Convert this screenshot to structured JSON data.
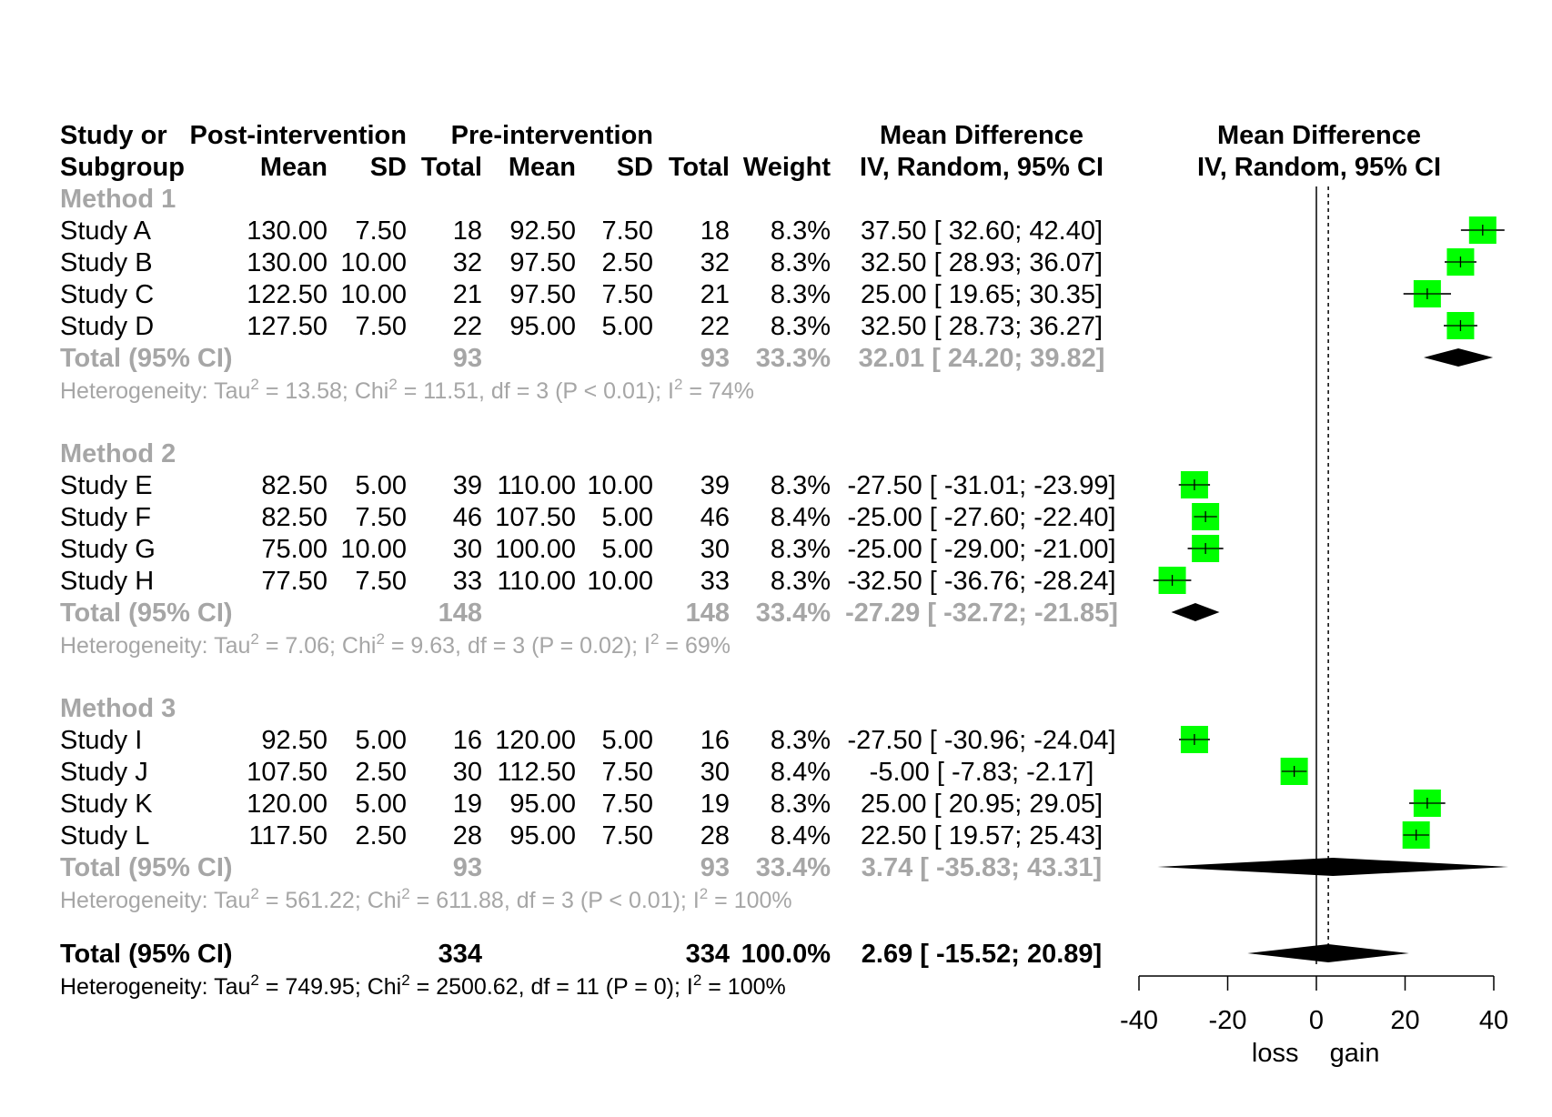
{
  "chart_data": {
    "type": "forest",
    "header": {
      "study_line1": "Study or",
      "study_line2": "Subgroup",
      "post_group": "Post-intervention",
      "pre_group": "Pre-intervention",
      "mean": "Mean",
      "sd": "SD",
      "total": "Total",
      "weight": "Weight",
      "md_text_line1": "Mean Difference",
      "md_text_line2": "IV, Random, 95% CI",
      "md_plot_line1": "Mean Difference",
      "md_plot_line2": "IV, Random, 95% CI"
    },
    "groups": [
      {
        "label": "Method 1",
        "studies": [
          {
            "name": "Study A",
            "post_mean": "130.00",
            "post_sd": "7.50",
            "post_n": "18",
            "pre_mean": "92.50",
            "pre_sd": "7.50",
            "pre_n": "18",
            "weight": "8.3%",
            "md": 37.5,
            "lo": 32.6,
            "hi": 42.4,
            "ci_text": "37.50 [  32.60;  42.40]"
          },
          {
            "name": "Study B",
            "post_mean": "130.00",
            "post_sd": "10.00",
            "post_n": "32",
            "pre_mean": "97.50",
            "pre_sd": "2.50",
            "pre_n": "32",
            "weight": "8.3%",
            "md": 32.5,
            "lo": 28.93,
            "hi": 36.07,
            "ci_text": "32.50 [  28.93;  36.07]"
          },
          {
            "name": "Study C",
            "post_mean": "122.50",
            "post_sd": "10.00",
            "post_n": "21",
            "pre_mean": "97.50",
            "pre_sd": "7.50",
            "pre_n": "21",
            "weight": "8.3%",
            "md": 25.0,
            "lo": 19.65,
            "hi": 30.35,
            "ci_text": "25.00 [  19.65;  30.35]"
          },
          {
            "name": "Study D",
            "post_mean": "127.50",
            "post_sd": "7.50",
            "post_n": "22",
            "pre_mean": "95.00",
            "pre_sd": "5.00",
            "pre_n": "22",
            "weight": "8.3%",
            "md": 32.5,
            "lo": 28.73,
            "hi": 36.27,
            "ci_text": "32.50 [  28.73;  36.27]"
          }
        ],
        "total": {
          "label": "Total (95% CI)",
          "post_n": "93",
          "pre_n": "93",
          "weight": "33.3%",
          "md": 32.01,
          "lo": 24.2,
          "hi": 39.82,
          "ci_text": "32.01 [  24.20;  39.82]"
        },
        "heterogeneity": {
          "prefix": "Heterogeneity: Tau",
          "sup1": "2",
          "mid1": " = 13.58; Chi",
          "sup2": "2",
          "mid2": " = 11.51, df = 3 (P < 0.01); I",
          "sup3": "2",
          "end": " = 74%"
        }
      },
      {
        "label": "Method 2",
        "studies": [
          {
            "name": "Study E",
            "post_mean": "82.50",
            "post_sd": "5.00",
            "post_n": "39",
            "pre_mean": "110.00",
            "pre_sd": "10.00",
            "pre_n": "39",
            "weight": "8.3%",
            "md": -27.5,
            "lo": -31.01,
            "hi": -23.99,
            "ci_text": "-27.50 [ -31.01; -23.99]"
          },
          {
            "name": "Study F",
            "post_mean": "82.50",
            "post_sd": "7.50",
            "post_n": "46",
            "pre_mean": "107.50",
            "pre_sd": "5.00",
            "pre_n": "46",
            "weight": "8.4%",
            "md": -25.0,
            "lo": -27.6,
            "hi": -22.4,
            "ci_text": "-25.00 [ -27.60; -22.40]"
          },
          {
            "name": "Study G",
            "post_mean": "75.00",
            "post_sd": "10.00",
            "post_n": "30",
            "pre_mean": "100.00",
            "pre_sd": "5.00",
            "pre_n": "30",
            "weight": "8.3%",
            "md": -25.0,
            "lo": -29.0,
            "hi": -21.0,
            "ci_text": "-25.00 [ -29.00; -21.00]"
          },
          {
            "name": "Study H",
            "post_mean": "77.50",
            "post_sd": "7.50",
            "post_n": "33",
            "pre_mean": "110.00",
            "pre_sd": "10.00",
            "pre_n": "33",
            "weight": "8.3%",
            "md": -32.5,
            "lo": -36.76,
            "hi": -28.24,
            "ci_text": "-32.50 [ -36.76; -28.24]"
          }
        ],
        "total": {
          "label": "Total (95% CI)",
          "post_n": "148",
          "pre_n": "148",
          "weight": "33.4%",
          "md": -27.29,
          "lo": -32.72,
          "hi": -21.85,
          "ci_text": "-27.29 [ -32.72; -21.85]"
        },
        "heterogeneity": {
          "prefix": "Heterogeneity: Tau",
          "sup1": "2",
          "mid1": " = 7.06; Chi",
          "sup2": "2",
          "mid2": " = 9.63, df = 3 (P = 0.02); I",
          "sup3": "2",
          "end": " = 69%"
        }
      },
      {
        "label": "Method 3",
        "studies": [
          {
            "name": "Study I",
            "post_mean": "92.50",
            "post_sd": "5.00",
            "post_n": "16",
            "pre_mean": "120.00",
            "pre_sd": "5.00",
            "pre_n": "16",
            "weight": "8.3%",
            "md": -27.5,
            "lo": -30.96,
            "hi": -24.04,
            "ci_text": "-27.50 [ -30.96; -24.04]"
          },
          {
            "name": "Study J",
            "post_mean": "107.50",
            "post_sd": "2.50",
            "post_n": "30",
            "pre_mean": "112.50",
            "pre_sd": "7.50",
            "pre_n": "30",
            "weight": "8.4%",
            "md": -5.0,
            "lo": -7.83,
            "hi": -2.17,
            "ci_text": "-5.00 [  -7.83;  -2.17]"
          },
          {
            "name": "Study K",
            "post_mean": "120.00",
            "post_sd": "5.00",
            "post_n": "19",
            "pre_mean": "95.00",
            "pre_sd": "7.50",
            "pre_n": "19",
            "weight": "8.3%",
            "md": 25.0,
            "lo": 20.95,
            "hi": 29.05,
            "ci_text": "25.00 [  20.95;  29.05]"
          },
          {
            "name": "Study L",
            "post_mean": "117.50",
            "post_sd": "2.50",
            "post_n": "28",
            "pre_mean": "95.00",
            "pre_sd": "7.50",
            "pre_n": "28",
            "weight": "8.4%",
            "md": 22.5,
            "lo": 19.57,
            "hi": 25.43,
            "ci_text": "22.50 [  19.57;  25.43]"
          }
        ],
        "total": {
          "label": "Total (95% CI)",
          "post_n": "93",
          "pre_n": "93",
          "weight": "33.4%",
          "md": 3.74,
          "lo": -35.83,
          "hi": 43.31,
          "ci_text": "3.74 [ -35.83;  43.31]"
        },
        "heterogeneity": {
          "prefix": "Heterogeneity: Tau",
          "sup1": "2",
          "mid1": " = 561.22; Chi",
          "sup2": "2",
          "mid2": " = 611.88, df = 3 (P < 0.01); I",
          "sup3": "2",
          "end": " = 100%"
        }
      }
    ],
    "overall": {
      "label": "Total (95% CI)",
      "post_n": "334",
      "pre_n": "334",
      "weight": "100.0%",
      "md": 2.69,
      "lo": -15.52,
      "hi": 20.89,
      "ci_text": "2.69 [ -15.52;  20.89]",
      "heterogeneity": {
        "prefix": "Heterogeneity: Tau",
        "sup1": "2",
        "mid1": " = 749.95; Chi",
        "sup2": "2",
        "mid2": " = 2500.62, df = 11 (P = 0); I",
        "sup3": "2",
        "end": " = 100%"
      }
    },
    "xlim": [
      -40,
      40
    ],
    "ticks": [
      -40,
      -20,
      0,
      20,
      40
    ],
    "tick_labels": [
      "-40",
      "-20",
      "0",
      "20",
      "40"
    ],
    "null_line": 0,
    "xlabel_left": "loss",
    "xlabel_right": "gain",
    "grid": false,
    "colors": {
      "box": "#00ff00",
      "subgroup_text": "#a6a6a6",
      "diamond": "#000000",
      "text": "#000000"
    }
  }
}
